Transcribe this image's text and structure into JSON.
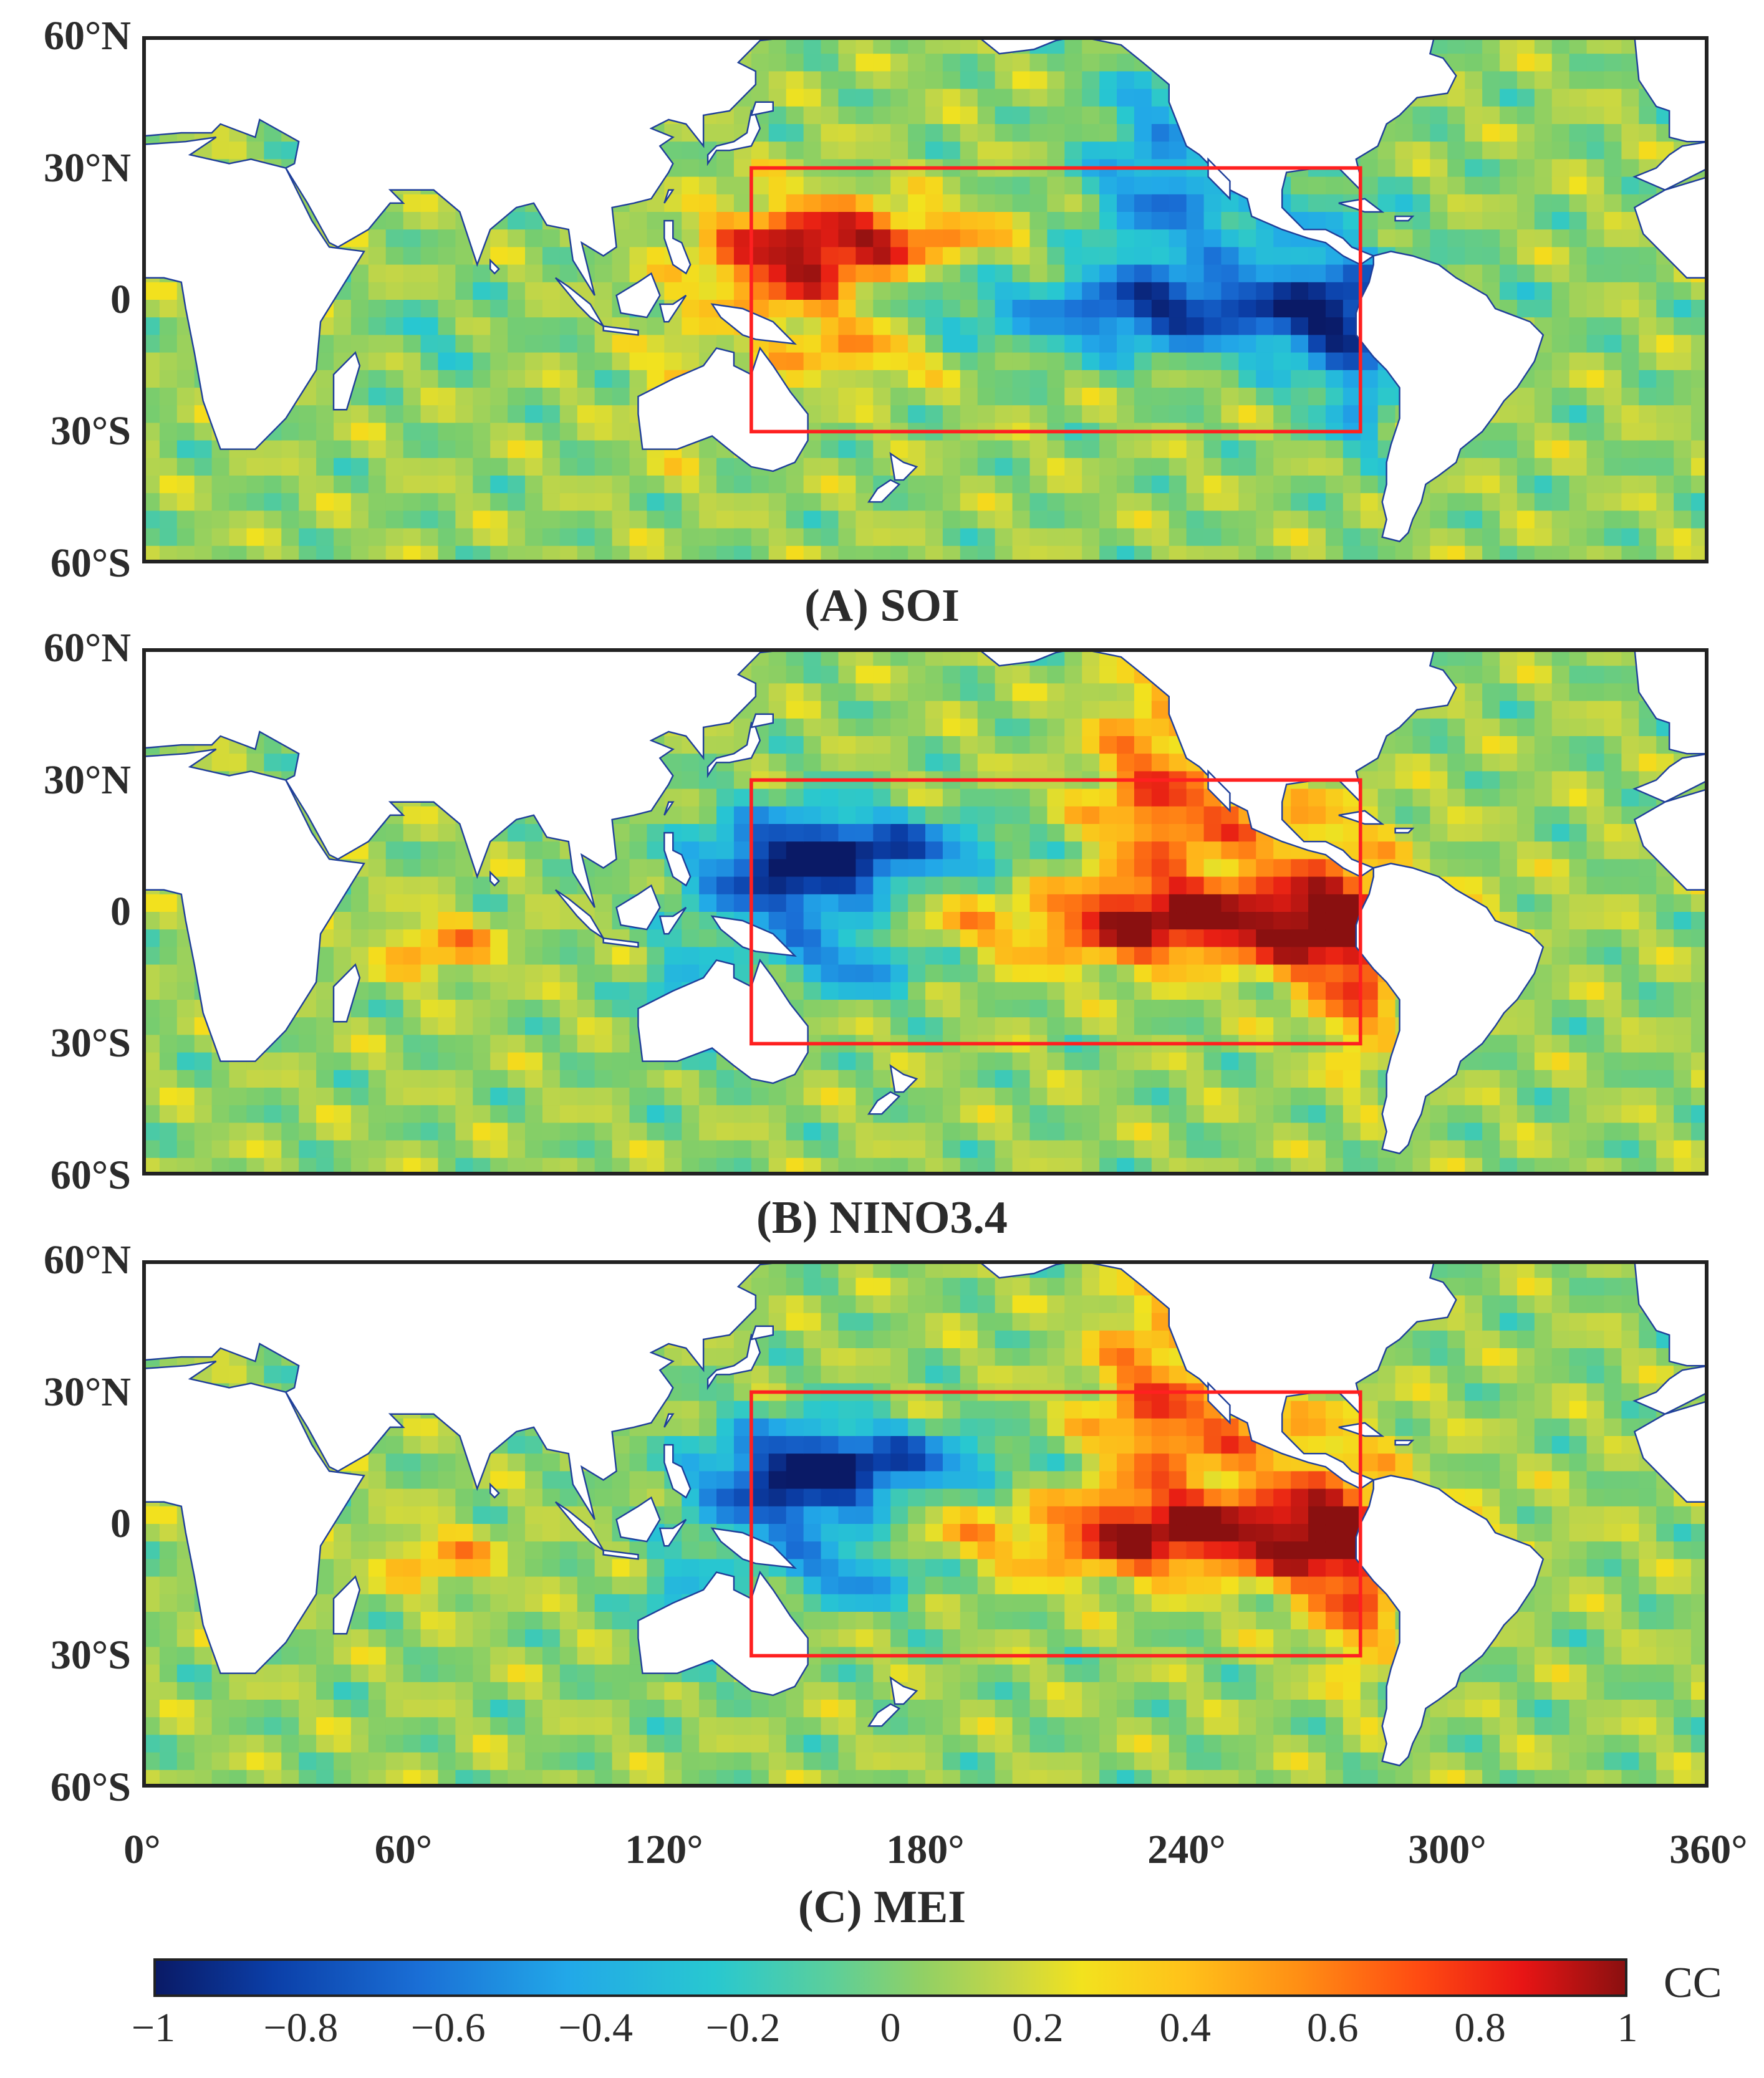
{
  "y_axis_labels": [
    "60°N",
    "30°N",
    "0",
    "30°S",
    "60°S"
  ],
  "x_axis_labels": [
    "0°",
    "60°",
    "120°",
    "180°",
    "240°",
    "300°",
    "360°"
  ],
  "panels": [
    {
      "title": "(A) SOI",
      "mode": "soi"
    },
    {
      "title": "(B) NINO3.4",
      "mode": "nino"
    },
    {
      "title": "(C) MEI",
      "mode": "mei"
    }
  ],
  "region_box": {
    "lon": [
      140,
      280
    ],
    "lat": [
      -30,
      30
    ],
    "color": "#ff2020"
  },
  "colorbar": {
    "label": "CC",
    "ticks": [
      "−1",
      "−0.8",
      "−0.6",
      "−0.4",
      "−0.2",
      "0",
      "0.2",
      "0.4",
      "0.6",
      "0.8",
      "1"
    ],
    "range": [
      -1,
      1
    ]
  },
  "colors": {
    "coast": "#1f3f9a",
    "frame": "#222222",
    "box": "#ff2020"
  }
}
